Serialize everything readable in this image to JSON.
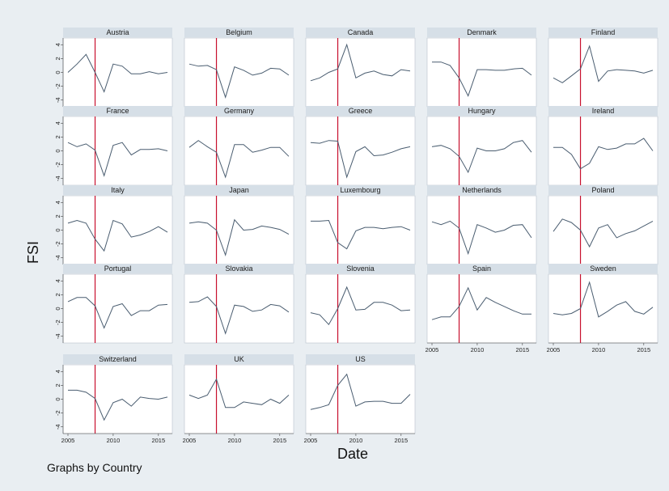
{
  "chart_data": {
    "type": "line",
    "small_multiples": true,
    "ylabel": "FSI",
    "xlabel": "Date",
    "note": "Graphs by Country",
    "x": [
      2005,
      2006,
      2007,
      2008,
      2009,
      2010,
      2011,
      2012,
      2013,
      2014,
      2015,
      2016
    ],
    "xticks": [
      2005,
      2010,
      2015
    ],
    "yticks": [
      4,
      2,
      0,
      -2,
      -4
    ],
    "ylim": [
      -4.5,
      4.5
    ],
    "xlim": [
      2005,
      2016
    ],
    "reference_line_x": 2008,
    "colors": {
      "line": "#4a5d70",
      "reference": "#c8102e",
      "strip": "#d6dfe7",
      "panel": "#ffffff",
      "background": "#e9eef2"
    },
    "series": [
      {
        "name": "Austria",
        "values": [
          0,
          1.2,
          2.6,
          0,
          -2.8,
          1.2,
          0.9,
          -0.2,
          -0.2,
          0.1,
          -0.2,
          0
        ]
      },
      {
        "name": "Belgium",
        "values": [
          1.2,
          0.9,
          1,
          0.4,
          -3.6,
          0.8,
          0.3,
          -0.4,
          -0.1,
          0.6,
          0.5,
          -0.4
        ]
      },
      {
        "name": "Canada",
        "values": [
          -1.2,
          -0.8,
          0,
          0.5,
          4,
          -0.8,
          -0.1,
          0.2,
          -0.3,
          -0.5,
          0.4,
          0.2
        ]
      },
      {
        "name": "Denmark",
        "values": [
          1.5,
          1.5,
          1,
          -0.8,
          -3.4,
          0.4,
          0.4,
          0.3,
          0.3,
          0.5,
          0.6,
          -0.4
        ]
      },
      {
        "name": "Finland",
        "values": [
          -0.8,
          -1.5,
          -0.5,
          0.5,
          3.8,
          -1.3,
          0.2,
          0.4,
          0.3,
          0.2,
          -0.1,
          0.3
        ]
      },
      {
        "name": "France",
        "values": [
          1.2,
          0.6,
          1,
          0.1,
          -3.6,
          0.8,
          1.2,
          -0.6,
          0.2,
          0.2,
          0.3,
          0
        ]
      },
      {
        "name": "Germany",
        "values": [
          0.5,
          1.5,
          0.6,
          -0.2,
          -3.8,
          0.9,
          0.9,
          -0.2,
          0.1,
          0.5,
          0.5,
          -0.8
        ]
      },
      {
        "name": "Greece",
        "values": [
          1.2,
          1.1,
          1.5,
          1.4,
          -3.8,
          -0.1,
          0.6,
          -0.7,
          -0.6,
          -0.2,
          0.3,
          0.6
        ]
      },
      {
        "name": "Hungary",
        "values": [
          0.6,
          0.8,
          0.3,
          -0.8,
          -3.1,
          0.4,
          0,
          0,
          0.3,
          1.2,
          1.5,
          -0.2
        ]
      },
      {
        "name": "Ireland",
        "values": [
          0.5,
          0.5,
          -0.5,
          -2.6,
          -1.8,
          0.6,
          0.2,
          0.4,
          1,
          1,
          1.8,
          0
        ]
      },
      {
        "name": "Italy",
        "values": [
          1,
          1.4,
          1,
          -1.3,
          -3,
          1.4,
          0.9,
          -1,
          -0.7,
          -0.2,
          0.5,
          -0.3
        ]
      },
      {
        "name": "Japan",
        "values": [
          1,
          1.2,
          1,
          0,
          -3.6,
          1.5,
          0,
          0.1,
          0.6,
          0.4,
          0.1,
          -0.6
        ]
      },
      {
        "name": "Luxembourg",
        "values": [
          1.3,
          1.3,
          1.4,
          -1.8,
          -2.7,
          -0.1,
          0.4,
          0.4,
          0.2,
          0.4,
          0.5,
          0
        ]
      },
      {
        "name": "Netherlands",
        "values": [
          1.2,
          0.8,
          1.3,
          0.3,
          -3.4,
          0.8,
          0.3,
          -0.3,
          0,
          0.7,
          0.8,
          -1.1
        ]
      },
      {
        "name": "Poland",
        "values": [
          -0.2,
          1.6,
          1.1,
          0,
          -2.4,
          0.3,
          0.8,
          -1.1,
          -0.5,
          -0.1,
          0.6,
          1.3
        ]
      },
      {
        "name": "Portugal",
        "values": [
          1,
          1.6,
          1.6,
          0.4,
          -2.8,
          0.3,
          0.7,
          -1,
          -0.3,
          -0.3,
          0.5,
          0.6
        ]
      },
      {
        "name": "Slovakia",
        "values": [
          0.9,
          1,
          1.7,
          0.3,
          -3.6,
          0.5,
          0.3,
          -0.4,
          -0.2,
          0.6,
          0.4,
          -0.5
        ]
      },
      {
        "name": "Slovenia",
        "values": [
          -0.6,
          -0.9,
          -2.3,
          0,
          3.1,
          -0.2,
          -0.1,
          0.9,
          0.9,
          0.5,
          -0.3,
          -0.2
        ]
      },
      {
        "name": "Spain",
        "values": [
          -1.6,
          -1.2,
          -1.2,
          0.3,
          3,
          -0.2,
          1.6,
          0.9,
          0.3,
          -0.3,
          -0.8,
          -0.8
        ]
      },
      {
        "name": "Sweden",
        "values": [
          -0.7,
          -0.9,
          -0.7,
          0,
          3.8,
          -1.2,
          -0.4,
          0.5,
          1,
          -0.4,
          -0.8,
          0.2
        ]
      },
      {
        "name": "Switzerland",
        "values": [
          1.3,
          1.3,
          1,
          0.1,
          -3,
          -0.5,
          0,
          -1,
          0.3,
          0.1,
          0,
          0.3
        ]
      },
      {
        "name": "UK",
        "values": [
          0.6,
          0.1,
          0.6,
          2.9,
          -1.2,
          -1.2,
          -0.4,
          -0.6,
          -0.8,
          0,
          -0.6,
          0.6
        ]
      },
      {
        "name": "US",
        "values": [
          -1.5,
          -1.2,
          -0.8,
          2,
          3.6,
          -1,
          -0.4,
          -0.3,
          -0.3,
          -0.6,
          -0.6,
          0.7
        ]
      }
    ]
  }
}
